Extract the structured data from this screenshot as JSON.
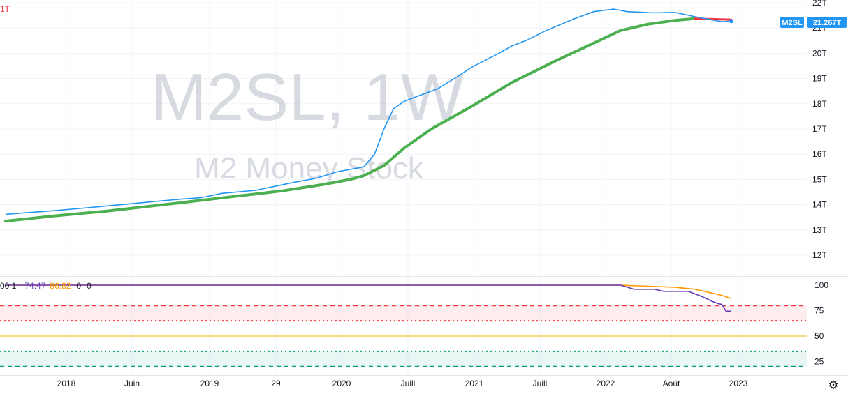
{
  "watermark": {
    "symbol": "M2SL, 1W",
    "description": "M2 Money Stock"
  },
  "top_left_label": "1T",
  "price_badge": {
    "symbol": "M2SL",
    "value": "21.267T",
    "color": "#2196f3"
  },
  "indicator_header": {
    "prefix": "00 1",
    "v1": "74.47",
    "v2": "86.82",
    "v3": "0",
    "v4": "0"
  },
  "colors": {
    "price_line": "#2196f3",
    "ma_line": "#4caf50",
    "ma_line_recent": "#f23645",
    "osc_line": "#673ab7",
    "osc_signal": "#ff9800",
    "upper_band": "#f23645",
    "lower_band": "#089981",
    "mid_level": "#f0b90b"
  },
  "settings_icon": "gear-icon",
  "chart_data": [
    {
      "type": "line",
      "title": "",
      "ylim": [
        11.2,
        22.3
      ],
      "y_ticks": [
        "22T",
        "21T",
        "20T",
        "19T",
        "18T",
        "17T",
        "16T",
        "15T",
        "14T",
        "13T",
        "12T"
      ],
      "x_ticks": [
        "2018",
        "Juin",
        "2019",
        "29",
        "2020",
        "Juill",
        "2021",
        "Juill",
        "2022",
        "Août",
        "2023"
      ],
      "series": [
        {
          "values": [
            [
              2017.55,
              13.62
            ],
            [
              2017.7,
              13.68
            ],
            [
              2017.9,
              13.76
            ],
            [
              2018.1,
              13.85
            ],
            [
              2018.3,
              13.95
            ],
            [
              2018.5,
              14.05
            ],
            [
              2018.7,
              14.15
            ],
            [
              2018.85,
              14.22
            ],
            [
              2019.0,
              14.28
            ],
            [
              2019.15,
              14.45
            ],
            [
              2019.4,
              14.57
            ],
            [
              2019.65,
              14.85
            ],
            [
              2019.85,
              15.05
            ],
            [
              2020.0,
              15.3
            ],
            [
              2020.2,
              15.5
            ],
            [
              2020.28,
              16.0
            ],
            [
              2020.35,
              17.0
            ],
            [
              2020.42,
              17.8
            ],
            [
              2020.5,
              18.1
            ],
            [
              2020.6,
              18.3
            ],
            [
              2020.75,
              18.6
            ],
            [
              2020.9,
              19.1
            ],
            [
              2021.0,
              19.45
            ],
            [
              2021.2,
              20.0
            ],
            [
              2021.3,
              20.3
            ],
            [
              2021.4,
              20.5
            ],
            [
              2021.55,
              20.9
            ],
            [
              2021.75,
              21.35
            ],
            [
              2021.9,
              21.65
            ],
            [
              2022.05,
              21.75
            ],
            [
              2022.15,
              21.65
            ],
            [
              2022.35,
              21.6
            ],
            [
              2022.5,
              21.62
            ],
            [
              2022.65,
              21.45
            ],
            [
              2022.75,
              21.35
            ],
            [
              2022.85,
              21.25
            ],
            [
              2022.92,
              21.27
            ]
          ]
        },
        {
          "values": [
            [
              2017.55,
              13.35
            ],
            [
              2017.9,
              13.55
            ],
            [
              2018.3,
              13.75
            ],
            [
              2018.8,
              14.05
            ],
            [
              2019.2,
              14.3
            ],
            [
              2019.6,
              14.55
            ],
            [
              2019.9,
              14.8
            ],
            [
              2020.1,
              15.0
            ],
            [
              2020.2,
              15.15
            ],
            [
              2020.35,
              15.55
            ],
            [
              2020.5,
              16.25
            ],
            [
              2020.7,
              17.0
            ],
            [
              2021.0,
              17.9
            ],
            [
              2021.3,
              18.85
            ],
            [
              2021.6,
              19.65
            ],
            [
              2021.9,
              20.4
            ],
            [
              2022.1,
              20.9
            ],
            [
              2022.3,
              21.15
            ],
            [
              2022.5,
              21.3
            ],
            [
              2022.65,
              21.37
            ]
          ]
        },
        {
          "values": [
            [
              2022.65,
              21.37
            ],
            [
              2022.8,
              21.35
            ],
            [
              2022.92,
              21.33
            ]
          ]
        }
      ]
    },
    {
      "type": "line",
      "title": "",
      "ylim": [
        14,
        104
      ],
      "y_ticks": [
        "100",
        "75",
        "50",
        "25"
      ],
      "levels": [
        80,
        65,
        50,
        35,
        20
      ],
      "series": [
        {
          "values": [
            [
              2017.55,
              100
            ],
            [
              2022.1,
              100
            ],
            [
              2022.2,
              96
            ],
            [
              2022.35,
              96
            ],
            [
              2022.42,
              94
            ],
            [
              2022.6,
              94
            ],
            [
              2022.7,
              89
            ],
            [
              2022.78,
              84
            ],
            [
              2022.82,
              82
            ],
            [
              2022.85,
              81
            ],
            [
              2022.88,
              74.5
            ],
            [
              2022.92,
              74.47
            ]
          ]
        },
        {
          "values": [
            [
              2017.55,
              100
            ],
            [
              2022.1,
              100
            ],
            [
              2022.3,
              99
            ],
            [
              2022.5,
              98
            ],
            [
              2022.65,
              96
            ],
            [
              2022.75,
              93
            ],
            [
              2022.85,
              90
            ],
            [
              2022.92,
              86.82
            ]
          ]
        }
      ]
    }
  ]
}
